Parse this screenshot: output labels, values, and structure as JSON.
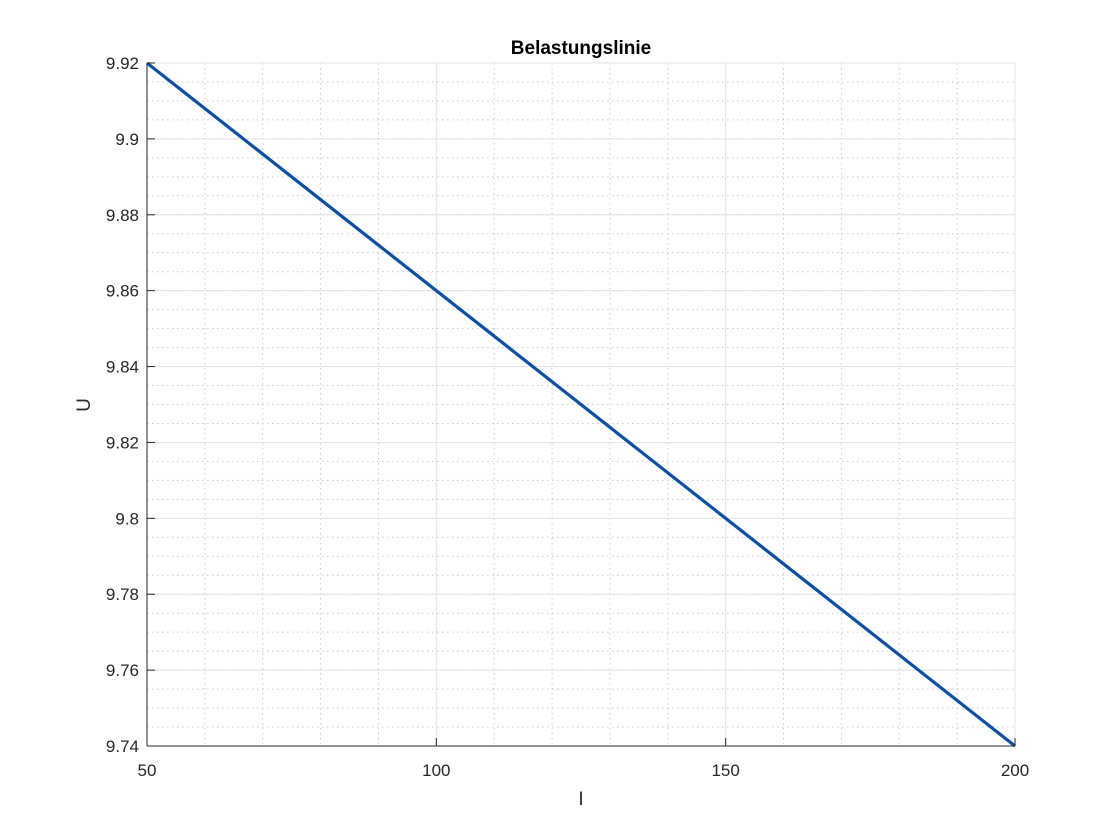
{
  "chart_data": {
    "type": "line",
    "title": "Belastungslinie",
    "xlabel": "I",
    "ylabel": "U",
    "xlim": [
      50,
      200
    ],
    "ylim": [
      9.74,
      9.92
    ],
    "xticks": [
      50,
      100,
      150,
      200
    ],
    "xtick_labels": [
      "50",
      "100",
      "150",
      "200"
    ],
    "yticks": [
      9.74,
      9.76,
      9.78,
      9.8,
      9.82,
      9.84,
      9.86,
      9.88,
      9.9,
      9.92
    ],
    "ytick_labels": [
      "9.74",
      "9.76",
      "9.78",
      "9.8",
      "9.82",
      "9.84",
      "9.86",
      "9.88",
      "9.9",
      "9.92"
    ],
    "grid": true,
    "minor_grid": true,
    "series": [
      {
        "color": "#0b4fa8",
        "x": [
          50,
          200
        ],
        "y": [
          9.92,
          9.74
        ]
      }
    ]
  }
}
